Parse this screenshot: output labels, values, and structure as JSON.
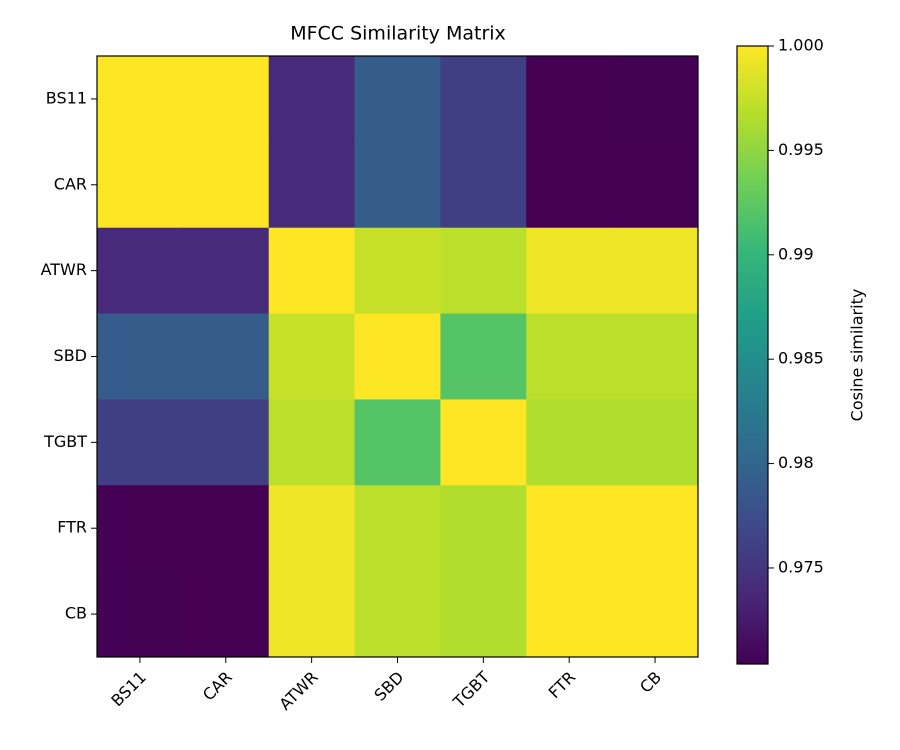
{
  "chart_data": {
    "type": "heatmap",
    "title": "MFCC Similarity Matrix",
    "x": [
      "BS11",
      "CAR",
      "ATWR",
      "SBD",
      "TGBT",
      "FTR",
      "CB"
    ],
    "y": [
      "BS11",
      "CAR",
      "ATWR",
      "SBD",
      "TGBT",
      "FTR",
      "CB"
    ],
    "z": [
      [
        1.0,
        1.0,
        0.974,
        0.979,
        0.976,
        0.9704,
        0.9705
      ],
      [
        1.0,
        1.0,
        0.974,
        0.979,
        0.976,
        0.9704,
        0.9704
      ],
      [
        0.974,
        0.974,
        1.0,
        0.9975,
        0.997,
        0.9993,
        0.9993
      ],
      [
        0.979,
        0.979,
        0.9975,
        1.0,
        0.992,
        0.997,
        0.997
      ],
      [
        0.976,
        0.976,
        0.997,
        0.992,
        1.0,
        0.9965,
        0.9965
      ],
      [
        0.9704,
        0.9704,
        0.9993,
        0.997,
        0.9965,
        1.0,
        1.0
      ],
      [
        0.9705,
        0.9704,
        0.9993,
        0.997,
        0.9965,
        1.0,
        1.0
      ]
    ],
    "colormap": "viridis",
    "colorbar": {
      "label": "Cosine similarity",
      "lim": [
        0.9704,
        1.0
      ],
      "ticks": [
        0.975,
        0.98,
        0.985,
        0.99,
        0.995,
        {
          "value": 1.0,
          "label": "1.000"
        }
      ]
    }
  }
}
